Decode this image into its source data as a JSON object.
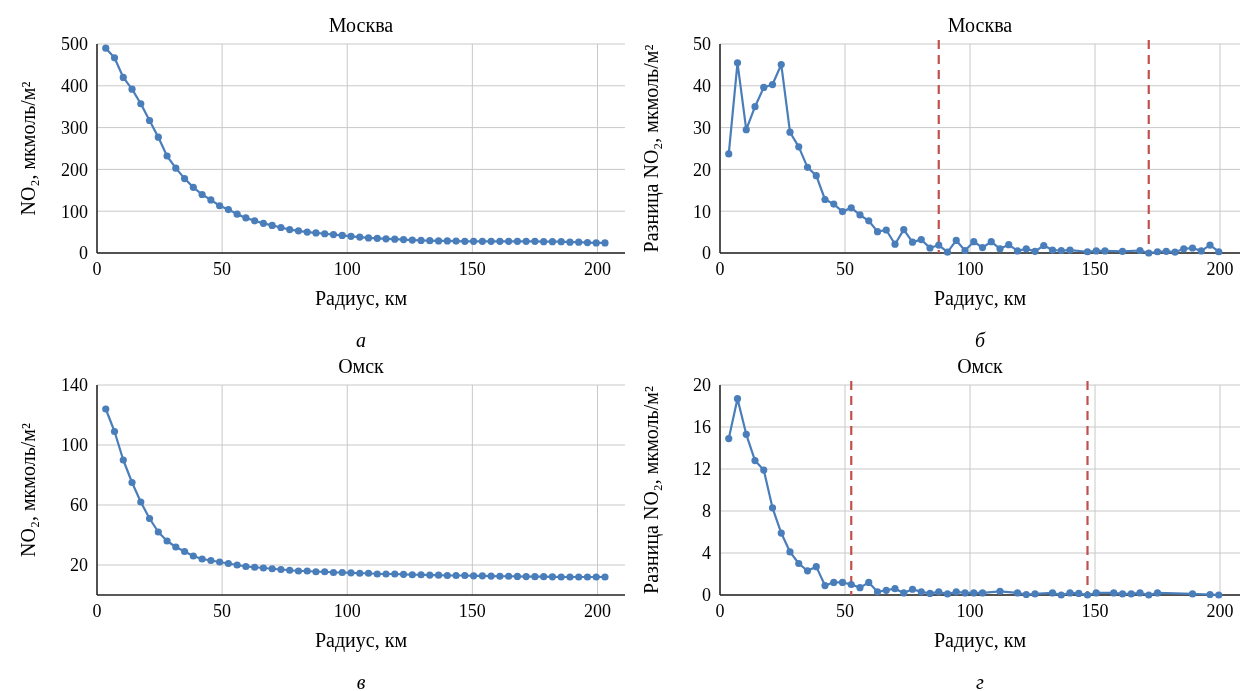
{
  "chart_data": [
    {
      "type": "line",
      "title": "Москва",
      "xlabel": "Радиус, км",
      "ylabel": "NO₂, мкмоль/м²",
      "annotations": [
        "а"
      ],
      "grid": true,
      "marker": "circle",
      "xlim": [
        0,
        211
      ],
      "xticks": [
        0,
        50,
        100,
        150,
        200
      ],
      "ylim": [
        0,
        500
      ],
      "yticks": [
        0,
        100,
        200,
        300,
        400,
        500
      ],
      "series": [
        {
          "color": "#4a7ebb",
          "x": [
            3.5,
            7,
            10.5,
            14,
            17.5,
            21,
            24.5,
            28,
            31.5,
            35,
            38.5,
            42,
            45.5,
            49,
            52.5,
            56,
            59.5,
            63,
            66.5,
            70,
            73.5,
            77,
            80.5,
            84,
            87.5,
            91,
            94.5,
            98,
            101.5,
            105,
            108.5,
            112,
            115.5,
            119,
            122.5,
            126,
            129.5,
            133,
            136.5,
            140,
            143.5,
            147,
            150.5,
            154,
            157.5,
            161,
            164.5,
            168,
            171.5,
            175,
            178.5,
            182,
            185.5,
            189,
            192.5,
            196,
            199.5,
            203
          ],
          "values": [
            490,
            467,
            420,
            392,
            357,
            317,
            277,
            232,
            203,
            178,
            157,
            140,
            127,
            113,
            104,
            93,
            84,
            77,
            71,
            66,
            61,
            56,
            53,
            50,
            48,
            46,
            44,
            42,
            40,
            38,
            36,
            35,
            34,
            33,
            32,
            31,
            30,
            29.5,
            29,
            29,
            28.5,
            28,
            28,
            28,
            28,
            28,
            28,
            28,
            28,
            28,
            27,
            27,
            27,
            26,
            26,
            25,
            24,
            24
          ]
        }
      ]
    },
    {
      "type": "line",
      "title": "Москва",
      "xlabel": "Радиус, км",
      "ylabel": "Разница NO₂, мкмоль/м²",
      "annotations": [
        "б"
      ],
      "grid": true,
      "marker": "circle",
      "xlim": [
        0,
        208
      ],
      "xticks": [
        0,
        50,
        100,
        150,
        200
      ],
      "ylim": [
        0,
        50
      ],
      "yticks": [
        0,
        10,
        20,
        30,
        40,
        50
      ],
      "ref_lines": [
        {
          "axis": "x",
          "value": 87.5,
          "color": "#c0504d",
          "line_style": "dashed"
        },
        {
          "axis": "x",
          "value": 171.5,
          "color": "#c0504d",
          "line_style": "dashed"
        }
      ],
      "series": [
        {
          "color": "#4a7ebb",
          "x": [
            3.5,
            7,
            10.5,
            14,
            17.5,
            21,
            24.5,
            28,
            31.5,
            35,
            38.5,
            42,
            45.5,
            49,
            52.5,
            56,
            59.5,
            63,
            66.5,
            70,
            73.5,
            77,
            80.5,
            84,
            87.5,
            91,
            94.5,
            98,
            101.5,
            105,
            108.5,
            112,
            115.5,
            119,
            122.5,
            126,
            129.5,
            133,
            136.5,
            140,
            147,
            150.5,
            154,
            161,
            168,
            171.5,
            175,
            178.5,
            182,
            185.5,
            189,
            192.5,
            196,
            199.5
          ],
          "values": [
            23.7,
            45.5,
            29.5,
            35,
            39.6,
            40.3,
            45.1,
            28.9,
            25.4,
            20.5,
            18.5,
            12.8,
            11.7,
            9.9,
            10.8,
            9.1,
            7.7,
            5.1,
            5.5,
            2.1,
            5.6,
            2.6,
            3.2,
            1.2,
            1.9,
            0.2,
            3,
            0.6,
            2.7,
            1.3,
            2.7,
            1,
            2,
            0.5,
            1,
            0.4,
            1.8,
            0.7,
            0.6,
            0.7,
            0.3,
            0.5,
            0.5,
            0.4,
            0.6,
            0,
            0.3,
            0.4,
            0.2,
            1,
            1.2,
            0.5,
            1.9,
            0.3
          ]
        }
      ]
    },
    {
      "type": "line",
      "title": "Омск",
      "xlabel": "Радиус, км",
      "ylabel": "NO₂, мкмоль/м²",
      "annotations": [
        "в"
      ],
      "grid": true,
      "marker": "circle",
      "xlim": [
        0,
        211
      ],
      "xticks": [
        0,
        50,
        100,
        150,
        200
      ],
      "ylim": [
        0,
        140
      ],
      "yticks": [
        20,
        60,
        100,
        140
      ],
      "series": [
        {
          "color": "#4a7ebb",
          "x": [
            3.5,
            7,
            10.5,
            14,
            17.5,
            21,
            24.5,
            28,
            31.5,
            35,
            38.5,
            42,
            45.5,
            49,
            52.5,
            56,
            59.5,
            63,
            66.5,
            70,
            73.5,
            77,
            80.5,
            84,
            87.5,
            91,
            94.5,
            98,
            101.5,
            105,
            108.5,
            112,
            115.5,
            119,
            122.5,
            126,
            129.5,
            133,
            136.5,
            140,
            143.5,
            147,
            150.5,
            154,
            157.5,
            161,
            164.5,
            168,
            171.5,
            175,
            178.5,
            182,
            185.5,
            189,
            192.5,
            196,
            199.5,
            203
          ],
          "values": [
            124,
            109,
            90,
            75,
            62,
            51,
            42,
            36,
            32,
            29,
            26,
            24,
            23,
            22,
            21,
            20,
            19,
            18.5,
            18,
            17.5,
            17,
            16.5,
            16,
            16,
            15.5,
            15.5,
            15,
            15,
            14.8,
            14.5,
            14.5,
            14,
            14,
            14,
            13.8,
            13.5,
            13.5,
            13.3,
            13.2,
            13,
            13,
            13,
            12.8,
            12.8,
            12.6,
            12.5,
            12.5,
            12.4,
            12.3,
            12.2,
            12.2,
            12.1,
            12,
            12,
            12,
            12,
            12,
            12
          ]
        }
      ]
    },
    {
      "type": "line",
      "title": "Омск",
      "xlabel": "Радиус, км",
      "ylabel": "Разница NO₂, мкмоль/м²",
      "annotations": [
        "г"
      ],
      "grid": true,
      "marker": "circle",
      "xlim": [
        0,
        208
      ],
      "xticks": [
        0,
        50,
        100,
        150,
        200
      ],
      "ylim": [
        0,
        20
      ],
      "yticks": [
        0,
        4,
        8,
        12,
        16,
        20
      ],
      "ref_lines": [
        {
          "axis": "x",
          "value": 52.5,
          "color": "#c0504d",
          "line_style": "dashed"
        },
        {
          "axis": "x",
          "value": 147,
          "color": "#c0504d",
          "line_style": "dashed"
        }
      ],
      "series": [
        {
          "color": "#4a7ebb",
          "x": [
            3.5,
            7,
            10.5,
            14,
            17.5,
            21,
            24.5,
            28,
            31.5,
            35,
            38.5,
            42,
            45.5,
            49,
            52.5,
            56,
            59.5,
            63,
            66.5,
            70,
            73.5,
            77,
            80.5,
            84,
            87.5,
            91,
            94.5,
            98,
            101.5,
            105,
            112,
            119,
            122.5,
            126,
            133,
            136.5,
            140,
            143.5,
            147,
            150.5,
            157.5,
            161,
            164.5,
            168,
            171.5,
            175,
            189,
            196,
            199.5
          ],
          "values": [
            14.9,
            18.7,
            15.3,
            12.8,
            11.9,
            8.3,
            5.9,
            4.1,
            3,
            2.3,
            2.7,
            0.9,
            1.2,
            1.2,
            1,
            0.7,
            1.2,
            0.3,
            0.45,
            0.6,
            0.2,
            0.55,
            0.3,
            0.15,
            0.3,
            0.1,
            0.3,
            0.2,
            0.2,
            0.2,
            0.35,
            0.2,
            0.05,
            0.1,
            0.2,
            0,
            0.2,
            0.15,
            0,
            0.2,
            0.2,
            0.1,
            0.1,
            0.2,
            0,
            0.2,
            0.1,
            0.05,
            0
          ]
        }
      ]
    }
  ]
}
